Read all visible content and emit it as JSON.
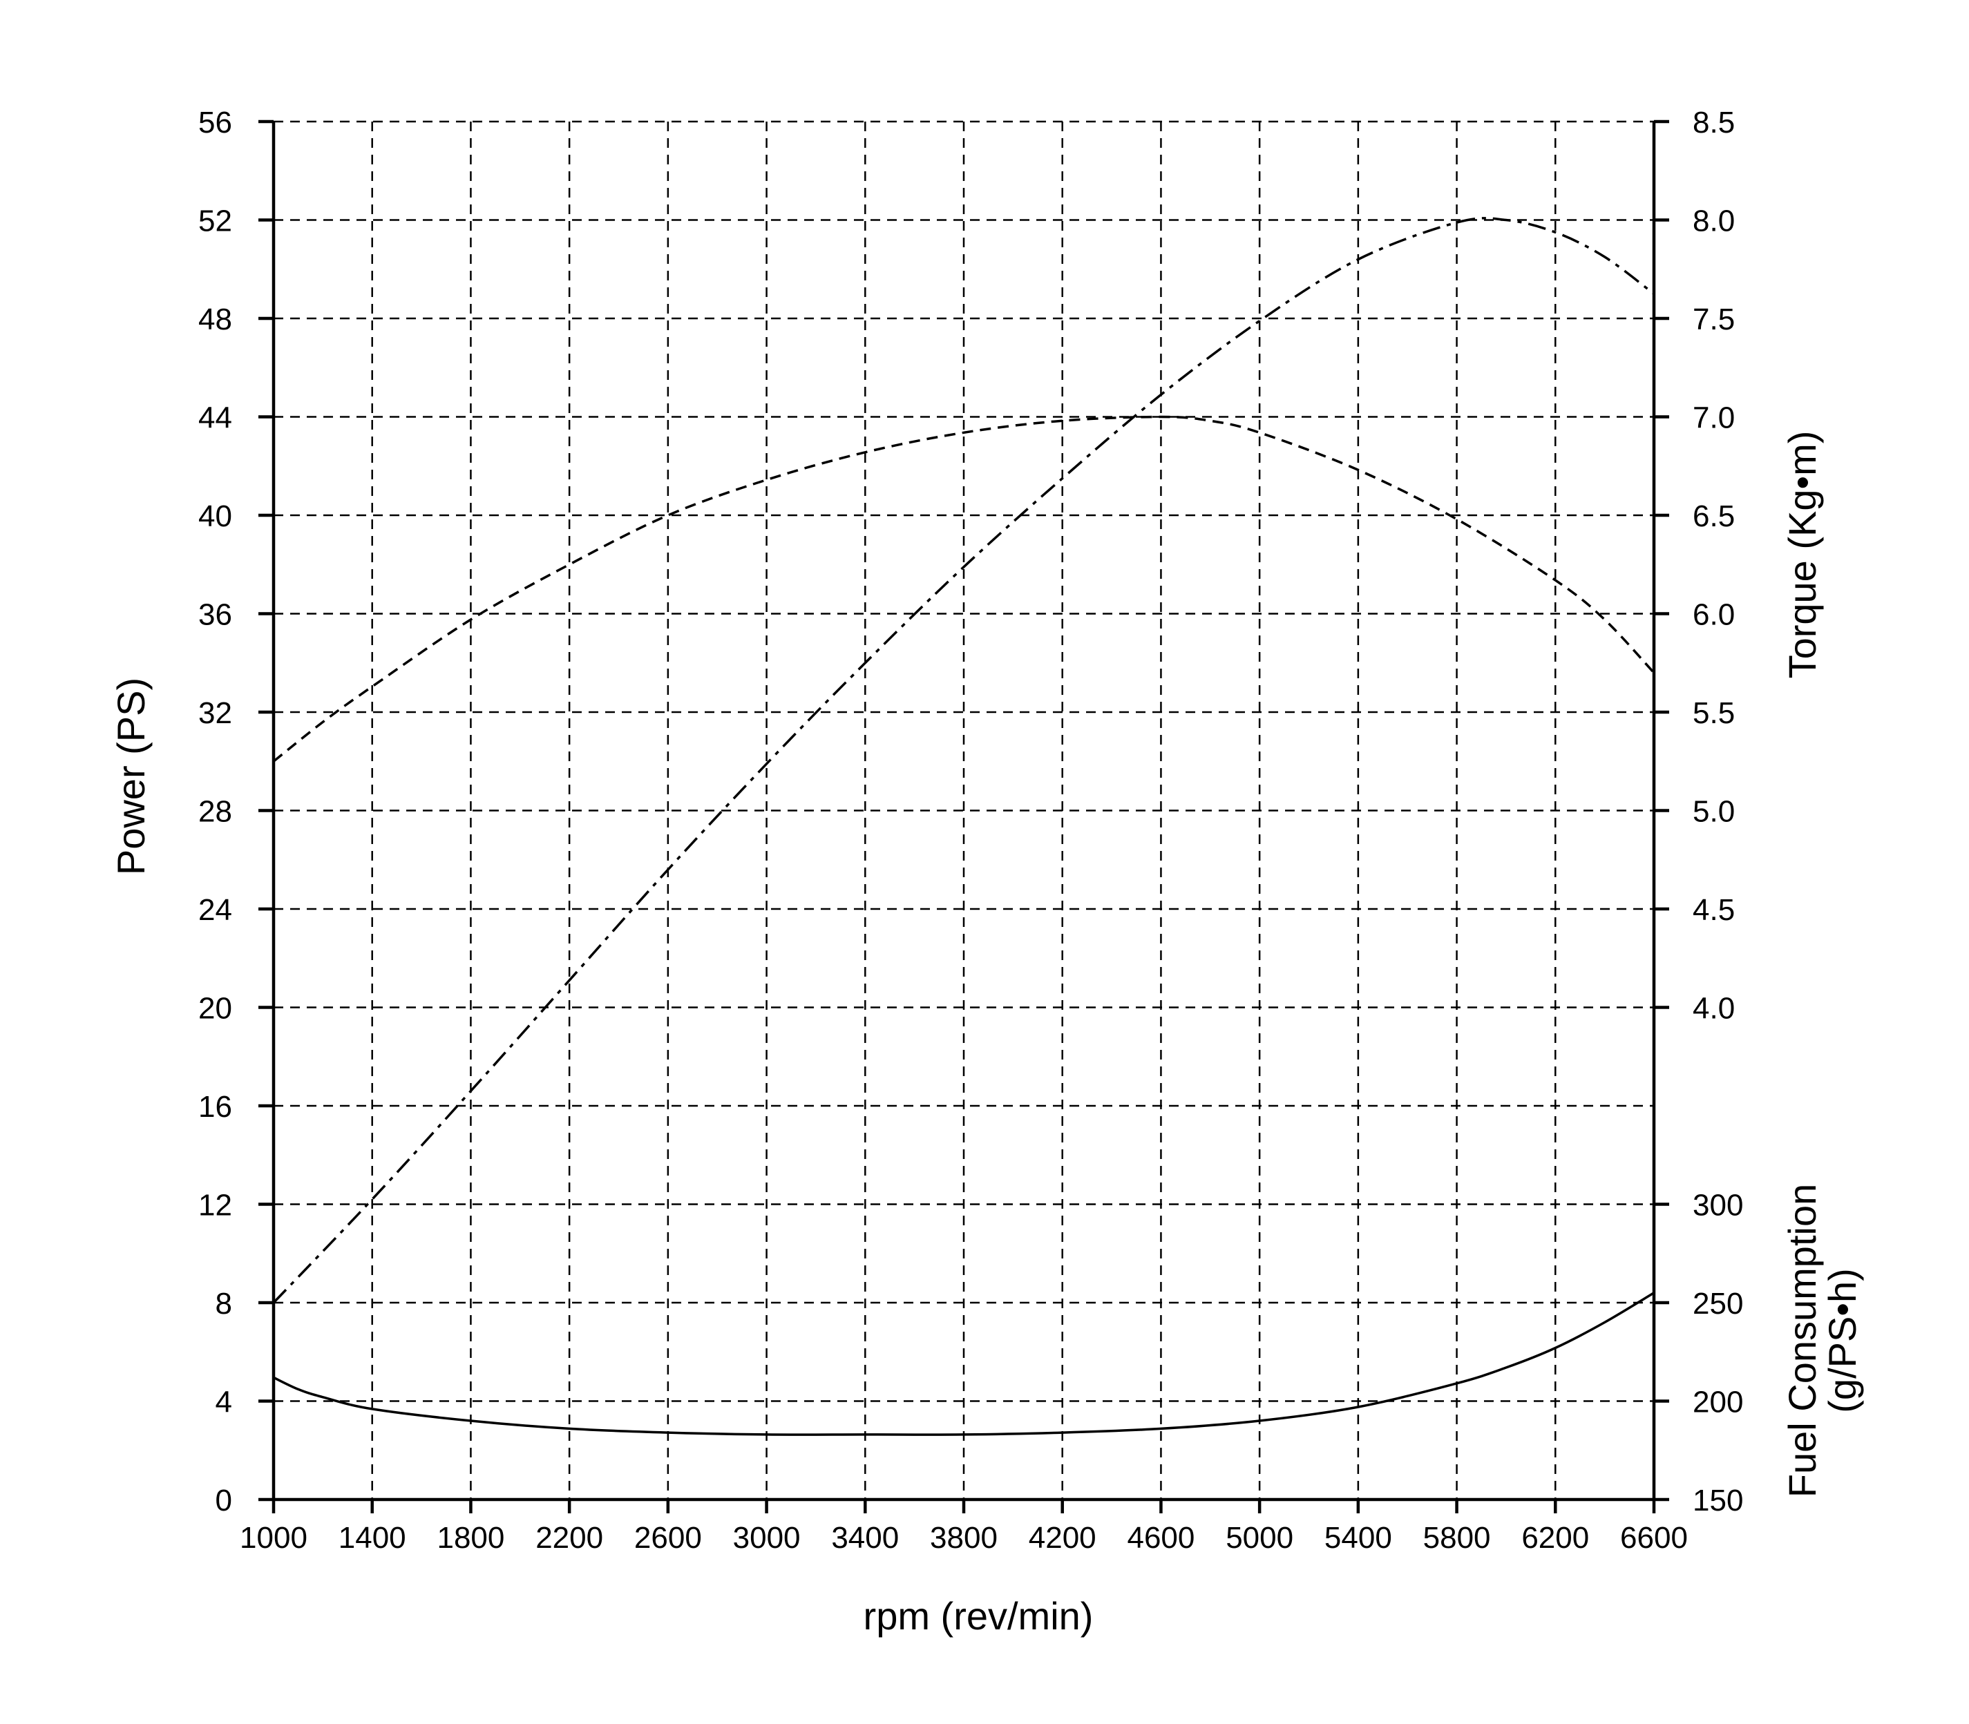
{
  "chart_data": {
    "type": "line",
    "x": {
      "label": "rpm (rev/min)",
      "range": [
        1000,
        6600
      ],
      "ticks": [
        1000,
        1400,
        1800,
        2200,
        2600,
        3000,
        3400,
        3800,
        4200,
        4600,
        5000,
        5400,
        5800,
        6200,
        6600
      ]
    },
    "y_left": {
      "label": "Power (PS)",
      "range": [
        0,
        56
      ],
      "ticks": [
        0,
        4,
        8,
        12,
        16,
        20,
        24,
        28,
        32,
        36,
        40,
        44,
        48,
        52,
        56
      ]
    },
    "y_right_torque": {
      "label": "Torque (Kg•m)",
      "range": [
        4.0,
        8.5
      ],
      "ticks": [
        "4.0",
        "4.5",
        "5.0",
        "5.5",
        "6.0",
        "6.5",
        "7.0",
        "7.5",
        "8.0",
        "8.5"
      ]
    },
    "y_right_fuel": {
      "label_line1": "Fuel Consumption",
      "label_line2": "(g/PS•h)",
      "range": [
        150,
        300
      ],
      "ticks": [
        "150",
        "200",
        "250",
        "300"
      ]
    },
    "grid": true,
    "series": [
      {
        "name": "Power",
        "axis": "left",
        "style": "dash-dot",
        "x": [
          1000,
          1400,
          1800,
          2200,
          2600,
          3000,
          3400,
          3800,
          4200,
          4600,
          5000,
          5400,
          5800,
          6000,
          6200,
          6400,
          6600
        ],
        "values": [
          8,
          12.2,
          16.6,
          21.1,
          25.6,
          29.9,
          34.0,
          37.9,
          41.5,
          44.9,
          47.9,
          50.4,
          51.9,
          52.0,
          51.5,
          50.5,
          49.0
        ]
      },
      {
        "name": "Torque",
        "axis": "right_torque",
        "style": "dashed",
        "x": [
          1000,
          1200,
          1400,
          1800,
          2200,
          2600,
          3000,
          3400,
          3800,
          4200,
          4600,
          4800,
          5000,
          5400,
          5800,
          6200,
          6400,
          6600
        ],
        "values": [
          5.25,
          5.45,
          5.63,
          5.97,
          6.25,
          6.5,
          6.68,
          6.82,
          6.92,
          6.98,
          7.0,
          6.98,
          6.92,
          6.73,
          6.48,
          6.17,
          5.97,
          5.7
        ]
      },
      {
        "name": "Fuel Consumption",
        "axis": "right_fuel",
        "style": "solid",
        "x": [
          1000,
          1100,
          1200,
          1400,
          1800,
          2200,
          2600,
          3000,
          3400,
          3800,
          4200,
          4600,
          5000,
          5400,
          5800,
          6000,
          6200,
          6400,
          6600
        ],
        "values": [
          212,
          206,
          202,
          196,
          190,
          186,
          184,
          183,
          183,
          183,
          184,
          186,
          190,
          197,
          209,
          217,
          227,
          240,
          255
        ]
      }
    ]
  }
}
